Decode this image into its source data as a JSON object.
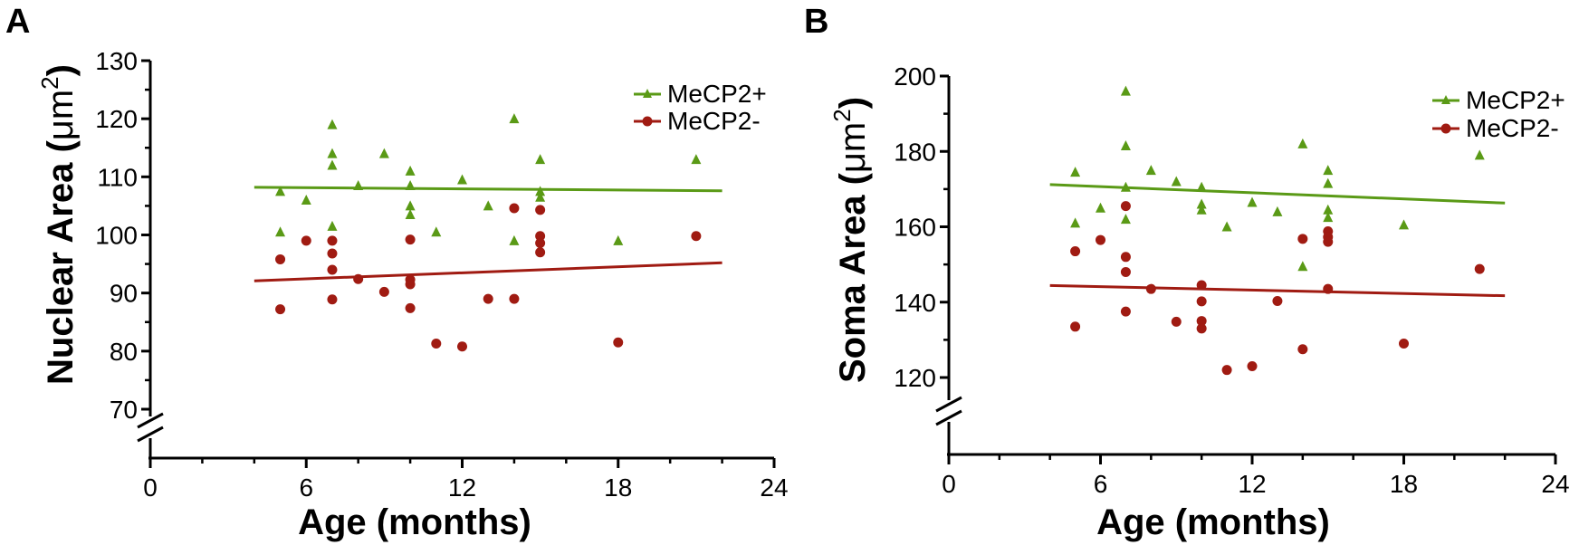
{
  "colors": {
    "plus": "#5a9a16",
    "minus": "#a01b12",
    "axis": "#000000"
  },
  "chart_data": [
    {
      "type": "scatter",
      "panel_label": "A",
      "ylabel_main": "Nuclear Area (",
      "ylabel_unit": "μm",
      "ylabel_sup": "2",
      "ylabel_close": ")",
      "xlabel": "Age (months)",
      "xlim": [
        0,
        24
      ],
      "ylim": [
        65,
        130
      ],
      "axis_break": true,
      "xticks": [
        0,
        6,
        12,
        18,
        24
      ],
      "yticks": [
        70,
        80,
        90,
        100,
        110,
        120,
        130
      ],
      "legend_position": "top-right",
      "series": [
        {
          "name": "MeCP2+",
          "color_key": "plus",
          "marker": "triangle",
          "points": [
            [
              5,
              107.5
            ],
            [
              5,
              100.5
            ],
            [
              6,
              106
            ],
            [
              7,
              119
            ],
            [
              7,
              114
            ],
            [
              7,
              112
            ],
            [
              7,
              101.5
            ],
            [
              8,
              108.5
            ],
            [
              9,
              114
            ],
            [
              10,
              111
            ],
            [
              10,
              108.5
            ],
            [
              10,
              105
            ],
            [
              10,
              103.5
            ],
            [
              11,
              100.5
            ],
            [
              12,
              109.5
            ],
            [
              13,
              105
            ],
            [
              14,
              120
            ],
            [
              14,
              99
            ],
            [
              15,
              113
            ],
            [
              15,
              107.5
            ],
            [
              15,
              106.5
            ],
            [
              18,
              99
            ],
            [
              21,
              113
            ]
          ],
          "fit": [
            [
              4,
              108.2
            ],
            [
              22,
              107.6
            ]
          ]
        },
        {
          "name": "MeCP2-",
          "color_key": "minus",
          "marker": "circle",
          "points": [
            [
              5,
              95.8
            ],
            [
              5,
              87.2
            ],
            [
              6,
              99
            ],
            [
              7,
              99
            ],
            [
              7,
              96.8
            ],
            [
              7,
              94
            ],
            [
              7,
              88.9
            ],
            [
              8,
              92.4
            ],
            [
              9,
              90.2
            ],
            [
              10,
              99.2
            ],
            [
              10,
              92.3
            ],
            [
              10,
              91.5
            ],
            [
              10,
              87.4
            ],
            [
              11,
              81.3
            ],
            [
              12,
              80.8
            ],
            [
              13,
              89
            ],
            [
              14,
              104.6
            ],
            [
              14,
              89
            ],
            [
              15,
              104.3
            ],
            [
              15,
              99.8
            ],
            [
              15,
              98.6
            ],
            [
              15,
              97
            ],
            [
              18,
              81.5
            ],
            [
              21,
              99.8
            ]
          ],
          "fit": [
            [
              4,
              92.1
            ],
            [
              22,
              95.2
            ]
          ]
        }
      ]
    },
    {
      "type": "scatter",
      "panel_label": "B",
      "ylabel_main": "Soma Area (",
      "ylabel_unit": "μm",
      "ylabel_sup": "2",
      "ylabel_close": ")",
      "xlabel": "Age (months)",
      "xlim": [
        0,
        24
      ],
      "ylim": [
        110,
        200
      ],
      "axis_break": true,
      "xticks": [
        0,
        6,
        12,
        18,
        24
      ],
      "yticks": [
        120,
        140,
        160,
        180,
        200
      ],
      "legend_position": "top-right",
      "series": [
        {
          "name": "MeCP2+",
          "color_key": "plus",
          "marker": "triangle",
          "points": [
            [
              5,
              174.5
            ],
            [
              5,
              161
            ],
            [
              6,
              165
            ],
            [
              7,
              196
            ],
            [
              7,
              181.5
            ],
            [
              7,
              170.5
            ],
            [
              7,
              162
            ],
            [
              8,
              175
            ],
            [
              9,
              172
            ],
            [
              10,
              170.5
            ],
            [
              10,
              166
            ],
            [
              10,
              164.5
            ],
            [
              11,
              160
            ],
            [
              12,
              166.5
            ],
            [
              13,
              164
            ],
            [
              14,
              182
            ],
            [
              14,
              149.5
            ],
            [
              15,
              175
            ],
            [
              15,
              171.5
            ],
            [
              15,
              164.5
            ],
            [
              15,
              162.5
            ],
            [
              18,
              160.5
            ],
            [
              21,
              179
            ]
          ],
          "fit": [
            [
              4,
              171.2
            ],
            [
              22,
              166.3
            ]
          ]
        },
        {
          "name": "MeCP2-",
          "color_key": "minus",
          "marker": "circle",
          "points": [
            [
              5,
              153.5
            ],
            [
              5,
              133.5
            ],
            [
              6,
              156.5
            ],
            [
              7,
              165.5
            ],
            [
              7,
              152
            ],
            [
              7,
              148
            ],
            [
              7,
              137.5
            ],
            [
              8,
              143.5
            ],
            [
              9,
              134.8
            ],
            [
              10,
              144.5
            ],
            [
              10,
              140.2
            ],
            [
              10,
              135
            ],
            [
              10,
              133
            ],
            [
              11,
              122
            ],
            [
              12,
              123
            ],
            [
              13,
              140.3
            ],
            [
              14,
              156.8
            ],
            [
              14,
              127.5
            ],
            [
              15,
              158.8
            ],
            [
              15,
              157.3
            ],
            [
              15,
              156
            ],
            [
              15,
              143.5
            ],
            [
              18,
              129
            ],
            [
              21,
              148.8
            ]
          ],
          "fit": [
            [
              4,
              144.4
            ],
            [
              22,
              141.7
            ]
          ]
        }
      ]
    }
  ]
}
